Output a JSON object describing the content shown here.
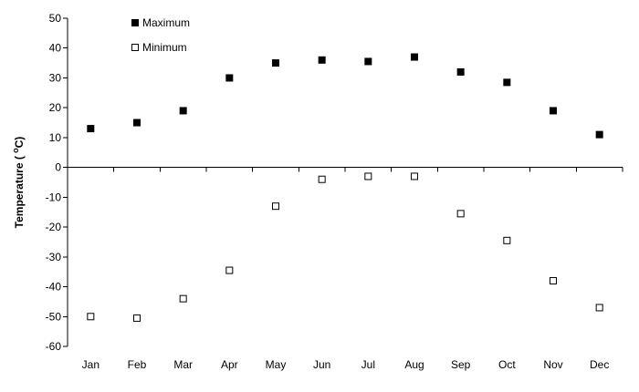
{
  "chart_data": {
    "type": "scatter",
    "title": "",
    "xlabel": "",
    "ylabel": "Temperature ( °C)",
    "ylabel_parts": {
      "prefix": "Temperature ( ",
      "superscript": "o",
      "unit": "C)"
    },
    "categories": [
      "Jan",
      "Feb",
      "Mar",
      "Apr",
      "May",
      "Jun",
      "Jul",
      "Aug",
      "Sep",
      "Oct",
      "Nov",
      "Dec"
    ],
    "ylim": [
      -60,
      50
    ],
    "yticks": [
      50,
      40,
      30,
      20,
      10,
      0,
      -10,
      -20,
      -30,
      -40,
      -50,
      -60
    ],
    "grid": false,
    "legend_position": "top-left",
    "series": [
      {
        "name": "Maximum",
        "marker": "filled-square",
        "color": "#000000",
        "values": [
          13,
          15,
          19,
          30,
          35,
          36,
          35.5,
          37,
          32,
          28.5,
          19,
          11
        ]
      },
      {
        "name": "Minimum",
        "marker": "open-square",
        "color": "#000000",
        "values": [
          -50,
          -50.5,
          -44,
          -34.5,
          -13,
          -4,
          -3,
          -3,
          -15.5,
          -24.5,
          -38,
          -47
        ]
      }
    ]
  }
}
